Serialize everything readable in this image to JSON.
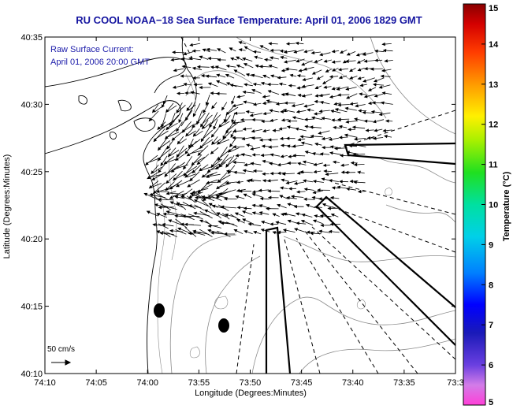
{
  "chart_data": {
    "type": "map",
    "title": "RU COOL  NOAA−18  Sea Surface Temperature:  April 01, 2006 1829 GMT",
    "overlay_label_line1": "Raw Surface Current:",
    "overlay_label_line2": "April 01, 2006 20:00 GMT",
    "xlabel": "Longitude (Degrees:Minutes)",
    "ylabel": "Latitude (Degrees:Minutes)",
    "x_ticks": [
      "74:10",
      "74:05",
      "74:00",
      "73:55",
      "73:50",
      "73:45",
      "73:40",
      "73:35",
      "73:3"
    ],
    "y_ticks": [
      "40:35",
      "40:30",
      "40:25",
      "40:20",
      "40:15",
      "40:10"
    ],
    "xlim_minutes_west": [
      4450,
      4410
    ],
    "ylim_minutes_north": [
      2410,
      2435
    ],
    "scale_label": "50 cm/s",
    "colorbar": {
      "label": "Temperature (°C)",
      "ticks": [
        "15",
        "14",
        "13",
        "12",
        "11",
        "10",
        "9",
        "8",
        "7",
        "6",
        "5"
      ],
      "range": [
        5,
        15
      ]
    },
    "colors": {
      "title": "#1515a0",
      "land": "#ffffff",
      "coastline": "#000000",
      "bathymetry": "#8a8a8a",
      "vectors": "#000000"
    }
  }
}
